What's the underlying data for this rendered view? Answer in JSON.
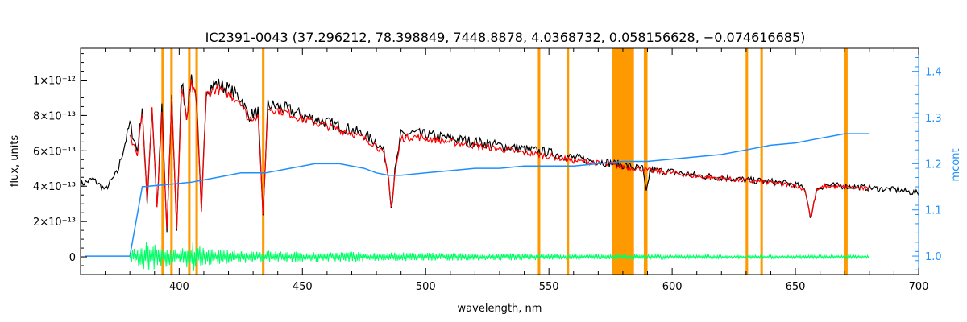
{
  "chart_data": {
    "type": "line",
    "title": "IC2391-0043    (37.296212, 78.398849, 7448.8878, 4.0368732, 0.058156628, −0.074616685)",
    "xlabel": "wavelength, nm",
    "ylabel": "flux, units",
    "ylabel_right": "mcont",
    "xlim": [
      360,
      700
    ],
    "ylim": [
      -1e-13,
      1.18e-12
    ],
    "ylim_right": [
      0.96,
      1.45
    ],
    "x_ticks": [
      {
        "v": 400,
        "label": "400"
      },
      {
        "v": 450,
        "label": "450"
      },
      {
        "v": 500,
        "label": "500"
      },
      {
        "v": 550,
        "label": "550"
      },
      {
        "v": 600,
        "label": "600"
      },
      {
        "v": 650,
        "label": "650"
      },
      {
        "v": 700,
        "label": "700"
      }
    ],
    "y_ticks": [
      {
        "v": 0,
        "label": "0"
      },
      {
        "v": 2e-13,
        "label": "2×10⁻¹³"
      },
      {
        "v": 4e-13,
        "label": "4×10⁻¹³"
      },
      {
        "v": 6e-13,
        "label": "6×10⁻¹³"
      },
      {
        "v": 8e-13,
        "label": "8×10⁻¹³"
      },
      {
        "v": 1e-12,
        "label": "1×10⁻¹²"
      }
    ],
    "y_right_ticks": [
      {
        "v": 1.0,
        "label": "1.0"
      },
      {
        "v": 1.1,
        "label": "1.1"
      },
      {
        "v": 1.2,
        "label": "1.2"
      },
      {
        "v": 1.3,
        "label": "1.3"
      },
      {
        "v": 1.4,
        "label": "1.4"
      }
    ],
    "masked_regions": [
      [
        392.8,
        393.8
      ],
      [
        396.4,
        397.4
      ],
      [
        403.6,
        404.6
      ],
      [
        406.6,
        407.6
      ],
      [
        433.6,
        434.6
      ],
      [
        545.5,
        546.5
      ],
      [
        557.2,
        558.2
      ],
      [
        575.5,
        584.5
      ],
      [
        588.5,
        590.0
      ],
      [
        629.8,
        630.8
      ],
      [
        635.8,
        636.8
      ],
      [
        669.6,
        671.2
      ]
    ],
    "series": [
      {
        "color": "#000000",
        "axis": "left",
        "x": [
          360,
          365,
          370,
          375,
          380,
          383,
          385,
          387,
          389,
          391,
          393,
          395,
          397,
          399,
          401,
          403,
          405,
          407,
          409,
          411,
          415,
          420,
          425,
          428,
          432,
          434,
          436,
          440,
          445,
          450,
          455,
          460,
          465,
          470,
          475,
          480,
          483,
          485,
          486.1,
          487.5,
          490,
          495,
          500,
          510,
          520,
          530,
          540,
          550,
          560,
          570,
          580,
          585,
          588,
          589.5,
          591,
          600,
          610,
          620,
          630,
          640,
          650,
          654,
          656.3,
          658.5,
          662,
          670,
          680,
          690,
          700
        ],
        "y": [
          4.1e-13,
          4.4e-13,
          3.8e-13,
          4.8e-13,
          7.5e-13,
          6e-13,
          8.5e-13,
          3e-13,
          8.5e-13,
          2.8e-13,
          8.4e-13,
          1.4e-13,
          9e-13,
          1.5e-13,
          1e-12,
          8e-13,
          1.02e-12,
          9e-13,
          2.5e-13,
          9.5e-13,
          9.8e-13,
          9.5e-13,
          9e-13,
          8e-13,
          8.2e-13,
          2.3e-13,
          8.6e-13,
          8.5e-13,
          8.3e-13,
          8e-13,
          7.8e-13,
          7.6e-13,
          7.4e-13,
          7.2e-13,
          6.9e-13,
          6.5e-13,
          6e-13,
          4.5e-13,
          2.6e-13,
          4.8e-13,
          6.9e-13,
          7e-13,
          6.9e-13,
          6.7e-13,
          6.5e-13,
          6.3e-13,
          6.1e-13,
          5.9e-13,
          5.6e-13,
          5.4e-13,
          5.2e-13,
          5.05e-13,
          5e-13,
          3.6e-13,
          4.9e-13,
          4.8e-13,
          4.6e-13,
          4.5e-13,
          4.35e-13,
          4.25e-13,
          4.1e-13,
          3.8e-13,
          2.1e-13,
          3.8e-13,
          4.05e-13,
          4e-13,
          3.9e-13,
          3.8e-13,
          3.6e-13
        ]
      },
      {
        "color": "#ff0000",
        "axis": "left",
        "x": [
          380,
          383,
          385,
          387,
          389,
          391,
          393,
          395,
          397,
          399,
          401,
          403,
          405,
          407,
          409,
          411,
          415,
          420,
          425,
          428,
          432,
          434,
          436,
          440,
          445,
          450,
          455,
          460,
          465,
          470,
          475,
          480,
          483,
          485,
          486.1,
          487.5,
          490,
          495,
          500,
          510,
          520,
          530,
          540,
          550,
          560,
          570,
          575,
          585,
          590,
          600,
          610,
          620,
          630,
          640,
          650,
          654,
          656.3,
          658.5,
          662,
          670,
          680
        ],
        "y": [
          6.9e-13,
          5.8e-13,
          8.3e-13,
          3.1e-13,
          8.3e-13,
          2.9e-13,
          8.2e-13,
          1.6e-13,
          8.8e-13,
          1.6e-13,
          9.6e-13,
          7.8e-13,
          9.8e-13,
          8.8e-13,
          2.6e-13,
          9.2e-13,
          9.5e-13,
          9.2e-13,
          8.8e-13,
          7.8e-13,
          8e-13,
          2.4e-13,
          8.4e-13,
          8.3e-13,
          8.1e-13,
          7.8e-13,
          7.6e-13,
          7.4e-13,
          7.2e-13,
          7e-13,
          6.7e-13,
          6.3e-13,
          5.8e-13,
          4.4e-13,
          2.7e-13,
          4.7e-13,
          6.7e-13,
          6.8e-13,
          6.7e-13,
          6.5e-13,
          6.3e-13,
          6.1e-13,
          5.9e-13,
          5.7e-13,
          5.45e-13,
          5.3e-13,
          5.2e-13,
          5e-13,
          4.9e-13,
          4.75e-13,
          4.55e-13,
          4.45e-13,
          4.3e-13,
          4.2e-13,
          4.05e-13,
          3.75e-13,
          2.15e-13,
          3.75e-13,
          4e-13,
          3.95e-13,
          3.85e-13
        ]
      },
      {
        "color": "#1e8fff",
        "axis": "right",
        "x": [
          362,
          380,
          385,
          395,
          405,
          415,
          425,
          435,
          445,
          455,
          460,
          465,
          470,
          475,
          480,
          485,
          490,
          500,
          510,
          520,
          530,
          540,
          550,
          560,
          570,
          580,
          590,
          600,
          610,
          620,
          630,
          640,
          650,
          660,
          665,
          670,
          675,
          680
        ],
        "y": [
          1.0,
          1.0,
          1.15,
          1.155,
          1.16,
          1.17,
          1.18,
          1.18,
          1.19,
          1.2,
          1.2,
          1.2,
          1.195,
          1.19,
          1.18,
          1.175,
          1.175,
          1.18,
          1.185,
          1.19,
          1.19,
          1.195,
          1.195,
          1.195,
          1.2,
          1.205,
          1.205,
          1.21,
          1.215,
          1.22,
          1.23,
          1.24,
          1.245,
          1.255,
          1.26,
          1.265,
          1.265,
          1.265
        ]
      },
      {
        "color": "#00ff66",
        "axis": "left",
        "style": "noise",
        "x": [
          380,
          385,
          390,
          395,
          400,
          405,
          410,
          420,
          430,
          440,
          450,
          460,
          470,
          480,
          490,
          500,
          520,
          540,
          560,
          580,
          600,
          620,
          640,
          660,
          680
        ],
        "y": [
          3e-14,
          9e-14,
          7e-14,
          6e-14,
          4e-14,
          9e-14,
          5e-14,
          4e-14,
          4e-14,
          3.5e-14,
          3e-14,
          3e-14,
          3e-14,
          2.5e-14,
          2.5e-14,
          2.5e-14,
          2e-14,
          2e-14,
          1.5e-14,
          1.5e-14,
          1.2e-14,
          1e-14,
          1e-14,
          1e-14,
          1e-14
        ]
      }
    ]
  }
}
